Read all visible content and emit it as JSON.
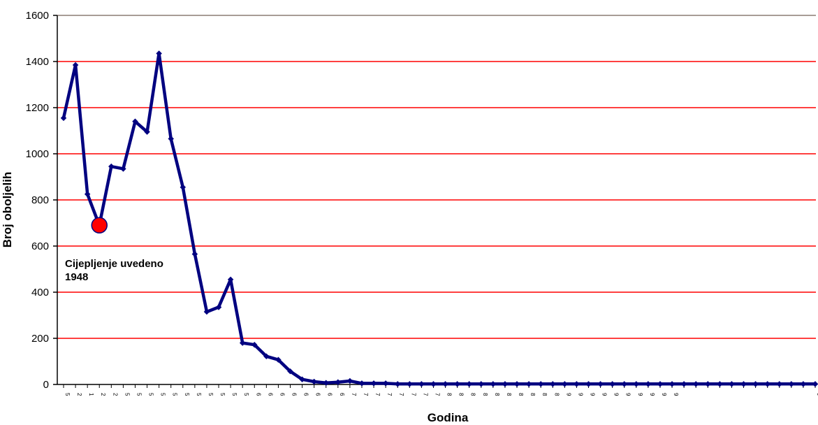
{
  "chart_data": {
    "type": "line",
    "title": "",
    "xlabel": "Godina",
    "ylabel": "Broj oboljelih",
    "ylim": [
      0,
      1600
    ],
    "yticks": [
      0,
      200,
      400,
      600,
      800,
      1000,
      1200,
      1400,
      1600
    ],
    "grid": "horizontal",
    "colors": {
      "line": "#000080",
      "grid": "#ff0000",
      "marker_highlight": "#ff0000",
      "top_border": "#8b7b73"
    },
    "series": [
      {
        "values": [
          1155,
          1385,
          825,
          690,
          945,
          935,
          1140,
          1095,
          1435,
          1065,
          855,
          565,
          315,
          335,
          455,
          180,
          172,
          122,
          107,
          57,
          22,
          12,
          7,
          10,
          15,
          5,
          5,
          5,
          2,
          2,
          2,
          2,
          2,
          2,
          2,
          2,
          2,
          2,
          2,
          2,
          2,
          2,
          2,
          2,
          2,
          2,
          2,
          2,
          2,
          2,
          2,
          2,
          2,
          2,
          2,
          2,
          2,
          2,
          2,
          2,
          2,
          2,
          2,
          2
        ]
      }
    ],
    "x_tick_glyphs": [
      "5",
      "2",
      "1",
      "2",
      "2",
      "5",
      "5",
      "5",
      "5",
      "5",
      "5",
      "5",
      "5",
      "5",
      "5",
      "5",
      "6",
      "6",
      "6",
      "6",
      "6",
      "6",
      "6",
      "6",
      "7",
      "7",
      "7",
      "7",
      "7",
      "7",
      "7",
      "7",
      "8",
      "8",
      "8",
      "8",
      "8",
      "8",
      "8",
      "8",
      "8",
      "8",
      "9",
      "9",
      "9",
      "9",
      "9",
      "9",
      "9",
      "9",
      "9",
      "9",
      "",
      "",
      "",
      "",
      "",
      "",
      "",
      "",
      "",
      "",
      "",
      "9"
    ],
    "highlight_point": {
      "index": 3
    },
    "annotation": [
      "Cijepljenje uvedeno",
      "1948"
    ]
  }
}
